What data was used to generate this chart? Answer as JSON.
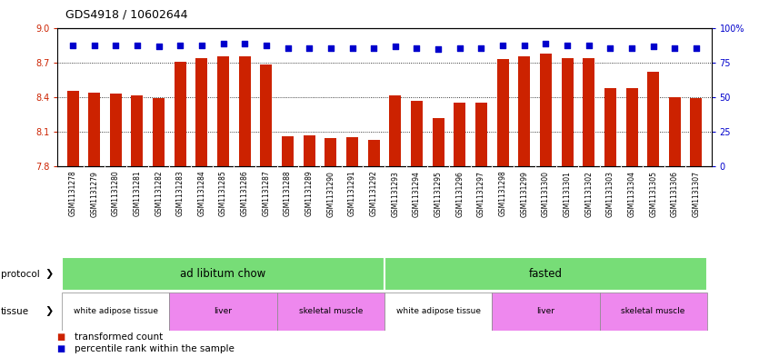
{
  "title": "GDS4918 / 10602644",
  "samples": [
    "GSM1131278",
    "GSM1131279",
    "GSM1131280",
    "GSM1131281",
    "GSM1131282",
    "GSM1131283",
    "GSM1131284",
    "GSM1131285",
    "GSM1131286",
    "GSM1131287",
    "GSM1131288",
    "GSM1131289",
    "GSM1131290",
    "GSM1131291",
    "GSM1131292",
    "GSM1131293",
    "GSM1131294",
    "GSM1131295",
    "GSM1131296",
    "GSM1131297",
    "GSM1131298",
    "GSM1131299",
    "GSM1131300",
    "GSM1131301",
    "GSM1131302",
    "GSM1131303",
    "GSM1131304",
    "GSM1131305",
    "GSM1131306",
    "GSM1131307"
  ],
  "bar_values": [
    8.46,
    8.44,
    8.43,
    8.42,
    8.39,
    8.71,
    8.74,
    8.76,
    8.76,
    8.69,
    8.06,
    8.07,
    8.04,
    8.05,
    8.03,
    8.42,
    8.37,
    8.22,
    8.35,
    8.35,
    8.73,
    8.76,
    8.78,
    8.74,
    8.74,
    8.48,
    8.48,
    8.62,
    8.4,
    8.39
  ],
  "percentile_values": [
    88,
    88,
    88,
    88,
    87,
    88,
    88,
    89,
    89,
    88,
    86,
    86,
    86,
    86,
    86,
    87,
    86,
    85,
    86,
    86,
    88,
    88,
    89,
    88,
    88,
    86,
    86,
    87,
    86,
    86
  ],
  "ylim_left": [
    7.8,
    9.0
  ],
  "ylim_right": [
    0,
    100
  ],
  "yticks_left": [
    7.8,
    8.1,
    8.4,
    8.7,
    9.0
  ],
  "yticks_right": [
    0,
    25,
    50,
    75,
    100
  ],
  "bar_color": "#CC2200",
  "dot_color": "#0000CC",
  "background_color": "#ffffff",
  "protocol_labels": [
    "ad libitum chow",
    "fasted"
  ],
  "protocol_ranges": [
    [
      0,
      14
    ],
    [
      15,
      29
    ]
  ],
  "protocol_color": "#77DD77",
  "tissue_groups": [
    {
      "label": "white adipose tissue",
      "range": [
        0,
        4
      ],
      "color": "#FFFFFF"
    },
    {
      "label": "liver",
      "range": [
        5,
        9
      ],
      "color": "#EE88EE"
    },
    {
      "label": "skeletal muscle",
      "range": [
        10,
        14
      ],
      "color": "#EE88EE"
    },
    {
      "label": "white adipose tissue",
      "range": [
        15,
        19
      ],
      "color": "#FFFFFF"
    },
    {
      "label": "liver",
      "range": [
        20,
        24
      ],
      "color": "#EE88EE"
    },
    {
      "label": "skeletal muscle",
      "range": [
        25,
        29
      ],
      "color": "#EE88EE"
    }
  ],
  "legend_bar_label": "transformed count",
  "legend_dot_label": "percentile rank within the sample",
  "protocol_label": "protocol",
  "tissue_label": "tissue",
  "sample_bg_color": "#CCCCCC",
  "sample_font_size": 5.5,
  "bar_width": 0.55
}
